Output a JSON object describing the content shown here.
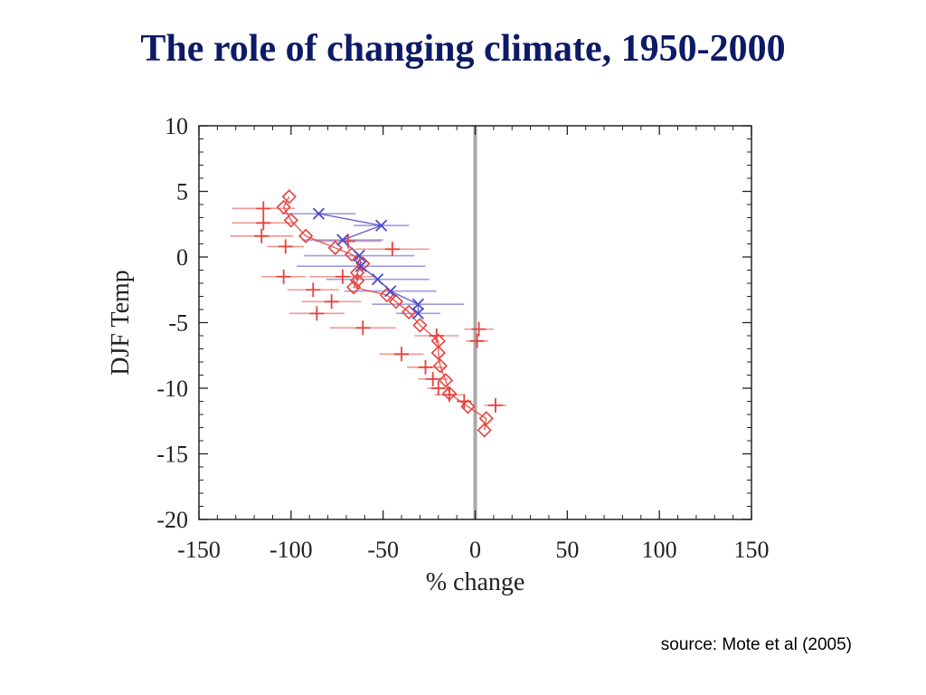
{
  "slide": {
    "title": "The role of changing climate, 1950-2000",
    "source": "source:  Mote et al (2005)"
  },
  "colors": {
    "title": "#0d1a66",
    "red_series": "#e8413a",
    "blue_series": "#4a4ac8",
    "zero_line": "#a8a8a8"
  },
  "chart_data": {
    "type": "scatter",
    "title": "",
    "xlabel": "% change",
    "ylabel": "DJF Temp",
    "xlim": [
      -150,
      150
    ],
    "ylim": [
      -20,
      10
    ],
    "xticks": [
      -150,
      -100,
      -50,
      0,
      50,
      100,
      150
    ],
    "yticks": [
      -20,
      -15,
      -10,
      -5,
      0,
      5,
      10
    ],
    "grid": false,
    "reference_line": {
      "x": 0
    },
    "series": [
      {
        "marker": "diamond",
        "color": "#e8413a",
        "points": [
          {
            "x": -101,
            "y": 4.6
          },
          {
            "x": -104,
            "y": 3.8
          },
          {
            "x": -100,
            "y": 2.8
          },
          {
            "x": -92,
            "y": 1.6
          },
          {
            "x": -76,
            "y": 0.7
          },
          {
            "x": -67,
            "y": 0.2
          },
          {
            "x": -61,
            "y": -0.5
          },
          {
            "x": -64,
            "y": -1.2
          },
          {
            "x": -64,
            "y": -1.8
          },
          {
            "x": -66,
            "y": -2.3
          },
          {
            "x": -48,
            "y": -2.9
          },
          {
            "x": -43,
            "y": -3.4
          },
          {
            "x": -36,
            "y": -4.2
          },
          {
            "x": -30,
            "y": -5.2
          },
          {
            "x": -20,
            "y": -6.4
          },
          {
            "x": -20,
            "y": -7.3
          },
          {
            "x": -19,
            "y": -8.3
          },
          {
            "x": -16,
            "y": -9.4
          },
          {
            "x": -14,
            "y": -10.4
          },
          {
            "x": -4,
            "y": -11.4
          },
          {
            "x": 6,
            "y": -12.3
          },
          {
            "x": 5,
            "y": -13.2
          }
        ]
      },
      {
        "marker": "cross",
        "color": "#e8413a",
        "points": [
          {
            "x": -115,
            "y": 3.7,
            "xerr": 17
          },
          {
            "x": -115,
            "y": 2.6,
            "xerr": 17
          },
          {
            "x": -116,
            "y": 1.6,
            "xerr": 17
          },
          {
            "x": -103,
            "y": 0.8,
            "xerr": 10
          },
          {
            "x": -69,
            "y": 1.2,
            "xerr": 18
          },
          {
            "x": -45,
            "y": 0.6,
            "xerr": 20
          },
          {
            "x": -104,
            "y": -1.5,
            "xerr": 12
          },
          {
            "x": -72,
            "y": -1.5,
            "xerr": 18
          },
          {
            "x": -88,
            "y": -2.5,
            "xerr": 14
          },
          {
            "x": -78,
            "y": -3.4,
            "xerr": 16
          },
          {
            "x": -86,
            "y": -4.3,
            "xerr": 15
          },
          {
            "x": -61,
            "y": -5.4,
            "xerr": 18
          },
          {
            "x": 2,
            "y": -5.5,
            "xerr": 8
          },
          {
            "x": -21,
            "y": -6.0,
            "xerr": 12
          },
          {
            "x": 1,
            "y": -6.4,
            "xerr": 6
          },
          {
            "x": -40,
            "y": -7.4,
            "xerr": 12
          },
          {
            "x": -27,
            "y": -8.4,
            "xerr": 10
          },
          {
            "x": -23,
            "y": -9.3,
            "xerr": 8
          },
          {
            "x": -14,
            "y": -10.5,
            "xerr": 8
          },
          {
            "x": -20,
            "y": -10.0,
            "xerr": 6
          },
          {
            "x": 11,
            "y": -11.3,
            "xerr": 6
          },
          {
            "x": -6,
            "y": -11.0,
            "xerr": 4
          }
        ]
      },
      {
        "marker": "x",
        "color": "#4a4ac8",
        "points": [
          {
            "x": -85,
            "y": 3.3,
            "xerr": 20
          },
          {
            "x": -51,
            "y": 2.4,
            "xerr": 15
          },
          {
            "x": -72,
            "y": 1.3,
            "xerr": 22
          },
          {
            "x": -63,
            "y": 0.1,
            "xerr": 30
          },
          {
            "x": -62,
            "y": -0.7,
            "xerr": 35
          },
          {
            "x": -53,
            "y": -1.7,
            "xerr": 28
          },
          {
            "x": -46,
            "y": -2.6,
            "xerr": 25
          },
          {
            "x": -31,
            "y": -3.6,
            "xerr": 25
          },
          {
            "x": -31,
            "y": -4.3,
            "xerr": 12
          }
        ]
      }
    ]
  }
}
